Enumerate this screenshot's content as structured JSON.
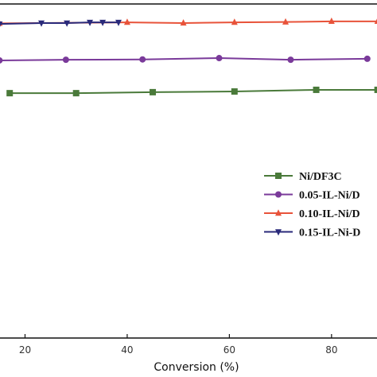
{
  "chart_data": {
    "type": "line",
    "x_label": "Conversion (%)",
    "xlim": [
      15.1,
      88.9
    ],
    "xticks": [
      20,
      40,
      60,
      80
    ],
    "ylim": [
      0,
      100
    ],
    "legend": "right",
    "series": [
      {
        "name": "Ni/DF3C",
        "color": "#4a7a3a",
        "marker": "square",
        "x": [
          17,
          30,
          45,
          61,
          77,
          89
        ],
        "values": [
          73.3,
          73.3,
          73.6,
          73.8,
          74.3,
          74.3
        ]
      },
      {
        "name": "0.05-IL-Ni/D",
        "color": "#7a3a9a",
        "marker": "circle",
        "x": [
          15,
          28,
          43,
          58,
          72,
          87
        ],
        "values": [
          83.1,
          83.3,
          83.4,
          83.8,
          83.3,
          83.6
        ]
      },
      {
        "name": "0.10-IL-Ni/D",
        "color": "#e8533a",
        "marker": "triangle",
        "x": [
          15,
          40,
          51,
          61,
          71,
          80,
          89
        ],
        "values": [
          94.2,
          94.5,
          94.3,
          94.5,
          94.6,
          94.8,
          94.8
        ]
      },
      {
        "name": "0.15-IL-Ni-D",
        "color": "#2a2a7a",
        "marker": "triangle-down",
        "x": [
          15,
          23.2,
          28.2,
          32.7,
          35.2,
          38.3
        ],
        "values": [
          94.0,
          94.3,
          94.3,
          94.5,
          94.5,
          94.5
        ]
      }
    ]
  }
}
